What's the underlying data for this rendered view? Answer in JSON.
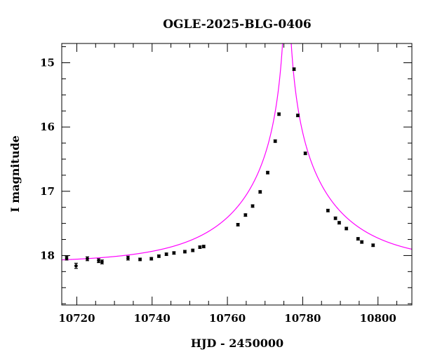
{
  "chart_data": {
    "type": "scatter",
    "title": "OGLE-2025-BLG-0406",
    "xlabel": "HJD - 2450000",
    "ylabel": "I magnitude",
    "xlim": [
      10716,
      10809
    ],
    "ylim": [
      18.77,
      14.7
    ],
    "y_inverted": true,
    "grid": false,
    "x_ticks": [
      10720,
      10740,
      10760,
      10780,
      10800
    ],
    "y_ticks": [
      15,
      16,
      17,
      18
    ],
    "colors": {
      "points": "#000000",
      "model": "#ff00ff"
    },
    "series": [
      {
        "type": "scatter-errorbar",
        "points": [
          {
            "x": 10717.3,
            "y": 18.04,
            "err": 0.03
          },
          {
            "x": 10719.8,
            "y": 18.16,
            "err": 0.04
          },
          {
            "x": 10722.8,
            "y": 18.05,
            "err": 0.03
          },
          {
            "x": 10725.8,
            "y": 18.08,
            "err": 0.03
          },
          {
            "x": 10726.7,
            "y": 18.1,
            "err": 0.03
          },
          {
            "x": 10733.6,
            "y": 18.04,
            "err": 0.03
          },
          {
            "x": 10736.8,
            "y": 18.06,
            "err": 0.02
          },
          {
            "x": 10739.8,
            "y": 18.05,
            "err": 0.02
          },
          {
            "x": 10741.8,
            "y": 18.01,
            "err": 0.02
          },
          {
            "x": 10743.8,
            "y": 17.98,
            "err": 0.02
          },
          {
            "x": 10745.8,
            "y": 17.96,
            "err": 0.02
          },
          {
            "x": 10748.7,
            "y": 17.94,
            "err": 0.02
          },
          {
            "x": 10750.8,
            "y": 17.92,
            "err": 0.02
          },
          {
            "x": 10752.7,
            "y": 17.87,
            "err": 0.02
          },
          {
            "x": 10753.7,
            "y": 17.86,
            "err": 0.02
          },
          {
            "x": 10762.8,
            "y": 17.52,
            "err": 0.02
          },
          {
            "x": 10764.8,
            "y": 17.37,
            "err": 0.02
          },
          {
            "x": 10766.7,
            "y": 17.23,
            "err": 0.02
          },
          {
            "x": 10768.7,
            "y": 17.01,
            "err": 0.02
          },
          {
            "x": 10770.7,
            "y": 16.71,
            "err": 0.02
          },
          {
            "x": 10772.7,
            "y": 16.22,
            "err": 0.02
          },
          {
            "x": 10773.7,
            "y": 15.8,
            "err": 0.02
          },
          {
            "x": 10777.7,
            "y": 15.1,
            "err": 0.02
          },
          {
            "x": 10778.7,
            "y": 15.82,
            "err": 0.02
          },
          {
            "x": 10780.7,
            "y": 16.41,
            "err": 0.02
          },
          {
            "x": 10786.7,
            "y": 17.3,
            "err": 0.02
          },
          {
            "x": 10788.7,
            "y": 17.42,
            "err": 0.02
          },
          {
            "x": 10789.7,
            "y": 17.49,
            "err": 0.02
          },
          {
            "x": 10791.6,
            "y": 17.58,
            "err": 0.02
          },
          {
            "x": 10794.7,
            "y": 17.74,
            "err": 0.02
          },
          {
            "x": 10795.7,
            "y": 17.79,
            "err": 0.02
          },
          {
            "x": 10798.7,
            "y": 17.84,
            "err": 0.02
          }
        ]
      },
      {
        "type": "line",
        "model": "pspl",
        "t0": 10775.8,
        "u0": 0.0055,
        "tE": 27.0,
        "baseline": 18.115
      }
    ]
  }
}
